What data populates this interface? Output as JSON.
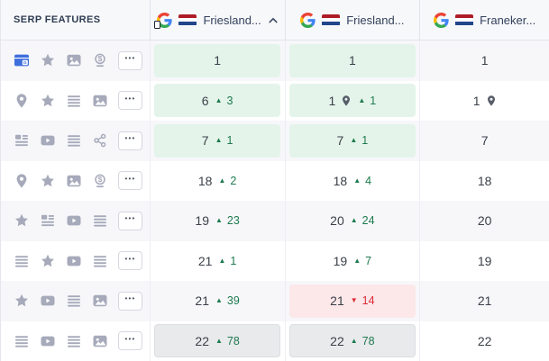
{
  "colors": {
    "icon_gray": "#a6aaba",
    "ads_blue": "#3f6fdd",
    "green_bg": "#e4f4ea",
    "red_bg": "#fce7e9",
    "gray_bg": "#e9eaec",
    "up_green": "#1e7a4e",
    "down_red": "#df2b35",
    "rank_text": "#3b4049",
    "header_text": "#2f3d52"
  },
  "header": {
    "features_label": "SERP FEATURES",
    "columns": [
      {
        "label": "Friesland...",
        "flag": "nl",
        "search_engine": "google",
        "device": "mobile",
        "sorted": "asc"
      },
      {
        "label": "Friesland...",
        "flag": "nl",
        "search_engine": "google",
        "device": "desktop",
        "sorted": null
      },
      {
        "label": "Franeker...",
        "flag": "nl",
        "search_engine": "google",
        "device": "desktop",
        "sorted": null
      }
    ]
  },
  "rows": [
    {
      "features": [
        "google-ads",
        "star",
        "image",
        "paid",
        "more"
      ],
      "cells": [
        {
          "rank": "1",
          "bg": "green"
        },
        {
          "rank": "1",
          "bg": "green"
        },
        {
          "rank": "1",
          "bg": "none"
        }
      ]
    },
    {
      "features": [
        "pin",
        "star",
        "lines",
        "image",
        "more"
      ],
      "cells": [
        {
          "rank": "6",
          "dir": "up",
          "change": "3",
          "bg": "green"
        },
        {
          "rank": "1",
          "pin": true,
          "dir": "up",
          "change": "1",
          "bg": "green"
        },
        {
          "rank": "1",
          "pin": true,
          "bg": "none"
        }
      ]
    },
    {
      "features": [
        "snippet",
        "video",
        "lines",
        "share",
        "more"
      ],
      "cells": [
        {
          "rank": "7",
          "dir": "up",
          "change": "1",
          "bg": "green"
        },
        {
          "rank": "7",
          "dir": "up",
          "change": "1",
          "bg": "green"
        },
        {
          "rank": "7",
          "bg": "none"
        }
      ]
    },
    {
      "features": [
        "pin",
        "star",
        "image",
        "paid",
        "more"
      ],
      "cells": [
        {
          "rank": "18",
          "dir": "up",
          "change": "2",
          "bg": "none"
        },
        {
          "rank": "18",
          "dir": "up",
          "change": "4",
          "bg": "none"
        },
        {
          "rank": "18",
          "bg": "none"
        }
      ]
    },
    {
      "features": [
        "star",
        "snippet",
        "video",
        "lines",
        "more"
      ],
      "cells": [
        {
          "rank": "19",
          "dir": "up",
          "change": "23",
          "bg": "none"
        },
        {
          "rank": "20",
          "dir": "up",
          "change": "24",
          "bg": "none"
        },
        {
          "rank": "20",
          "bg": "none"
        }
      ]
    },
    {
      "features": [
        "lines",
        "star",
        "video",
        "lines",
        "more"
      ],
      "cells": [
        {
          "rank": "21",
          "dir": "up",
          "change": "1",
          "bg": "none"
        },
        {
          "rank": "19",
          "dir": "up",
          "change": "7",
          "bg": "none"
        },
        {
          "rank": "19",
          "bg": "none"
        }
      ]
    },
    {
      "features": [
        "star",
        "video",
        "lines",
        "image",
        "more"
      ],
      "cells": [
        {
          "rank": "21",
          "dir": "up",
          "change": "39",
          "bg": "none"
        },
        {
          "rank": "21",
          "dir": "down",
          "change": "14",
          "bg": "red"
        },
        {
          "rank": "21",
          "bg": "none"
        }
      ]
    },
    {
      "features": [
        "lines",
        "video",
        "lines",
        "image",
        "more"
      ],
      "cells": [
        {
          "rank": "22",
          "dir": "up",
          "change": "78",
          "bg": "gray"
        },
        {
          "rank": "22",
          "dir": "up",
          "change": "78",
          "bg": "gray"
        },
        {
          "rank": "22",
          "bg": "none"
        }
      ]
    }
  ]
}
